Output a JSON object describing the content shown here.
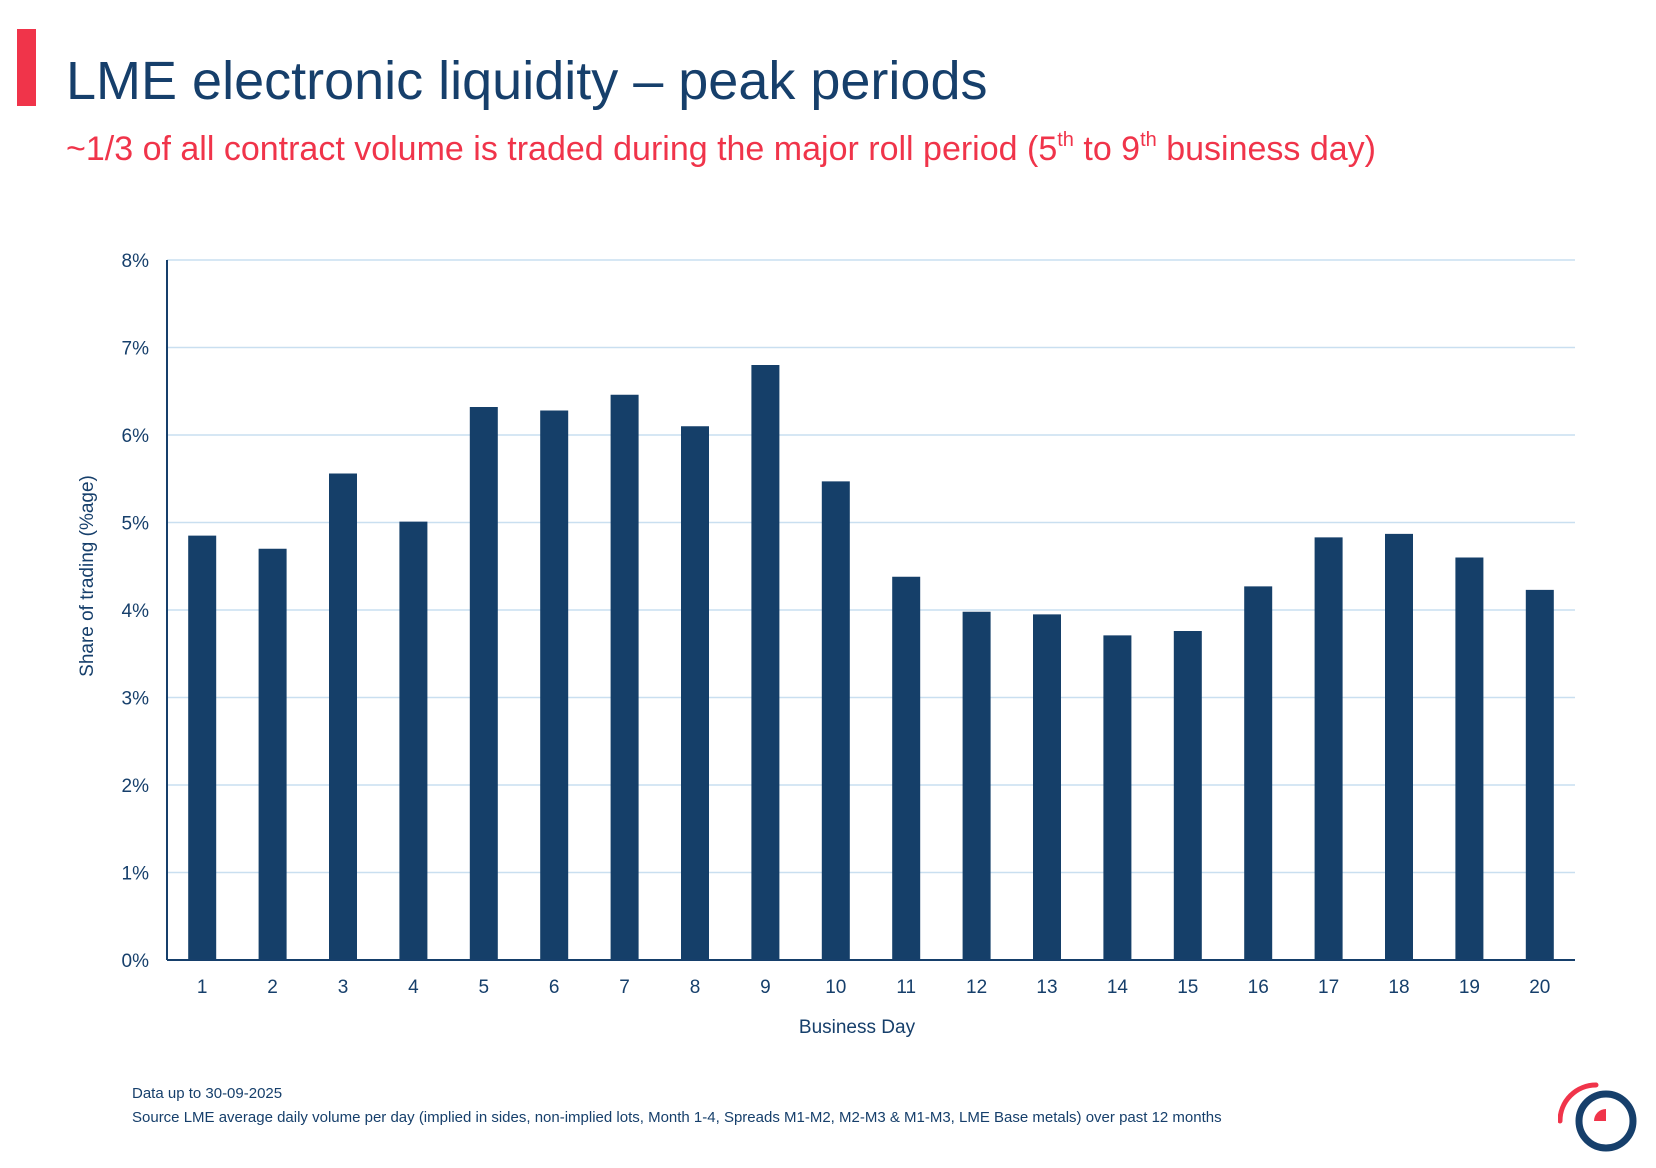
{
  "header": {
    "title": "LME electronic liquidity – peak periods",
    "subtitle": {
      "part1": "~1/3 of all contract volume is traded during the major roll period (5",
      "sup1": "th",
      "part2": " to 9",
      "sup2": "th",
      "part3": " business day)"
    }
  },
  "colors": {
    "accent": "#f0344a",
    "navy": "#163f6b",
    "bar": "#153f69",
    "grid": "#c9dff0"
  },
  "chart_data": {
    "type": "bar",
    "categories": [
      "1",
      "2",
      "3",
      "4",
      "5",
      "6",
      "7",
      "8",
      "9",
      "10",
      "11",
      "12",
      "13",
      "14",
      "15",
      "16",
      "17",
      "18",
      "19",
      "20"
    ],
    "values": [
      4.85,
      4.7,
      5.56,
      5.01,
      6.32,
      6.28,
      6.46,
      6.1,
      6.8,
      5.47,
      4.38,
      3.98,
      3.95,
      3.71,
      3.76,
      4.27,
      4.83,
      4.87,
      4.6,
      4.23
    ],
    "yticks": [
      "0%",
      "1%",
      "2%",
      "3%",
      "4%",
      "5%",
      "6%",
      "7%",
      "8%"
    ],
    "ylim": [
      0,
      8
    ],
    "unit": "%",
    "xlabel": "Business Day",
    "ylabel": "Share of trading (%age)",
    "grid": true
  },
  "footer": {
    "date_note": "Data up to 30-09-2025",
    "source_note": "Source LME average daily volume per day (implied in sides, non-implied lots, Month 1-4, Spreads  M1-M2, M2-M3 & M1-M3, LME Base metals) over past 12 months"
  },
  "logo": {
    "icon": "lme-ring-logo-icon"
  }
}
